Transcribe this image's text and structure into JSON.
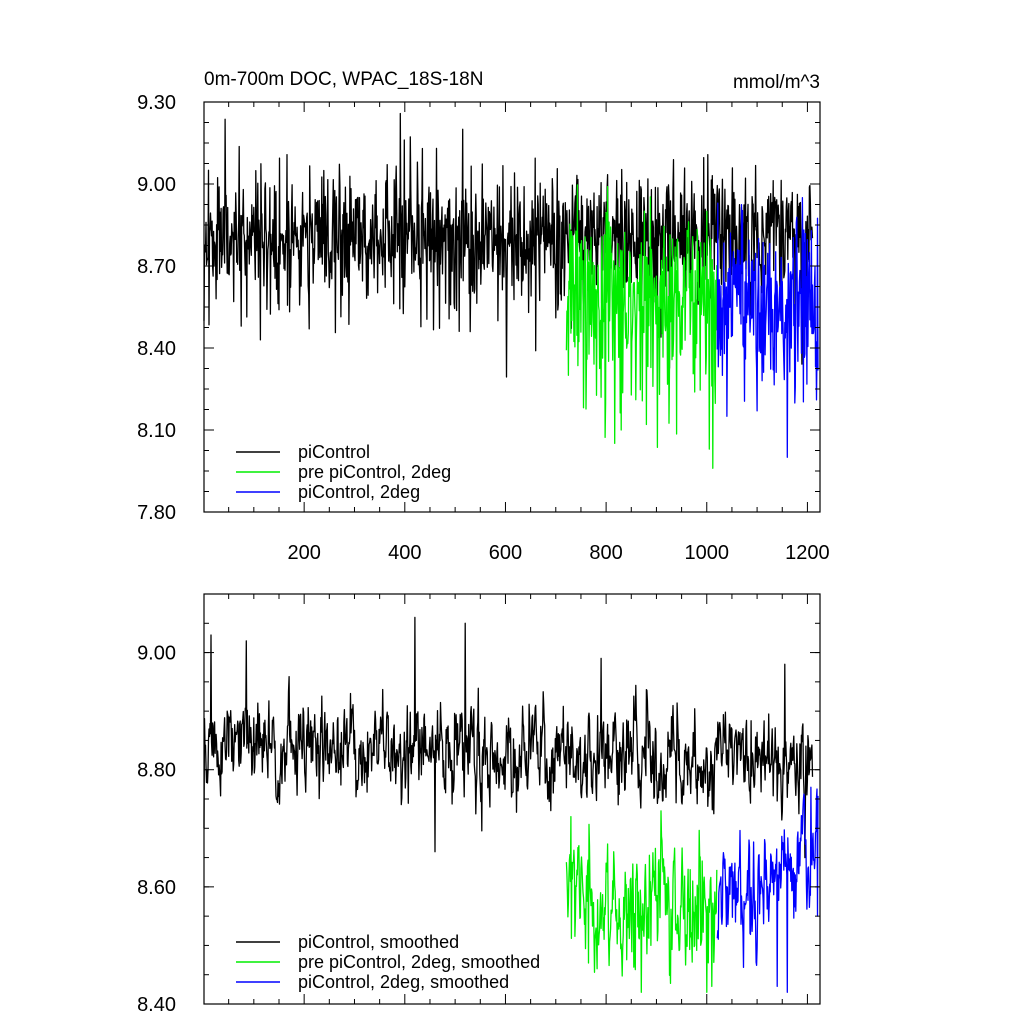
{
  "chart_data": [
    {
      "type": "line",
      "title": "0m-700m DOC, WPAC_18S-18N",
      "units": "mmol/m^3",
      "xlim": [
        1,
        1225
      ],
      "ylim": [
        7.8,
        9.3
      ],
      "y_ticks": [
        "7.80",
        "8.10",
        "8.40",
        "8.70",
        "9.00",
        "9.30"
      ],
      "x_ticks": [
        "200",
        "400",
        "600",
        "800",
        "1000",
        "1200"
      ],
      "legend_position": "bottom-left",
      "series": [
        {
          "name": "piControl",
          "color": "#000000",
          "x_range": [
            1,
            1210
          ],
          "mean": 8.81,
          "noise": 0.12,
          "trend": 0.0,
          "low_spikes": 0.3,
          "seed": 11,
          "points": [
            [
              1,
              8.5
            ],
            [
              10,
              9.05
            ],
            [
              25,
              8.58
            ],
            [
              75,
              8.48
            ],
            [
              150,
              8.54
            ],
            [
              210,
              8.47
            ],
            [
              310,
              8.95
            ],
            [
              425,
              9.08
            ],
            [
              435,
              9.13
            ],
            [
              515,
              9.2
            ],
            [
              530,
              8.46
            ],
            [
              585,
              8.5
            ],
            [
              660,
              8.39
            ]
          ]
        },
        {
          "name": "pre piControl, 2deg",
          "color": "#00ee00",
          "x_range": [
            721,
            1020
          ],
          "mean": 8.58,
          "noise": 0.17,
          "trend": 0.0,
          "low_spikes": 0.45,
          "seed": 23,
          "points": [
            [
              725,
              8.3
            ],
            [
              790,
              8.22
            ],
            [
              830,
              8.1
            ],
            [
              880,
              8.12
            ],
            [
              1005,
              8.03
            ],
            [
              1012,
              7.96
            ],
            [
              1000,
              8.9
            ]
          ]
        },
        {
          "name": "piControl, 2deg",
          "color": "#0000ff",
          "x_range": [
            1021,
            1221
          ],
          "mean": 8.56,
          "noise": 0.15,
          "trend": 0.0,
          "low_spikes": 0.35,
          "seed": 37,
          "points": [
            [
              1040,
              8.15
            ],
            [
              1100,
              8.17
            ],
            [
              1160,
              8.0
            ],
            [
              1190,
              8.95
            ],
            [
              1218,
              8.21
            ]
          ]
        }
      ]
    },
    {
      "type": "line",
      "xlim": [
        1,
        1225
      ],
      "ylim": [
        8.4,
        9.1
      ],
      "y_ticks": [
        "8.40",
        "8.60",
        "8.80",
        "9.00"
      ],
      "legend_position": "bottom-left",
      "series": [
        {
          "name": "piControl, smoothed",
          "color": "#000000",
          "x_range": [
            1,
            1210
          ],
          "mean": 8.84,
          "noise": 0.055,
          "trend": -2e-05,
          "smooth": true,
          "seed": 51,
          "points": [
            [
              1,
              8.7
            ],
            [
              15,
              9.03
            ],
            [
              85,
              9.02
            ],
            [
              420,
              9.06
            ],
            [
              460,
              8.66
            ],
            [
              520,
              9.05
            ],
            [
              790,
              8.99
            ],
            [
              1155,
              8.98
            ],
            [
              1195,
              8.65
            ]
          ]
        },
        {
          "name": "pre piControl, 2deg, smoothed",
          "color": "#00ee00",
          "x_range": [
            721,
            1020
          ],
          "mean": 8.57,
          "noise": 0.07,
          "trend": 0.0,
          "smooth": true,
          "seed": 63,
          "points": [
            [
              730,
              8.72
            ],
            [
              765,
              8.47
            ],
            [
              870,
              8.42
            ],
            [
              1000,
              8.42
            ],
            [
              1010,
              8.43
            ]
          ]
        },
        {
          "name": "piControl, 2deg, smoothed",
          "color": "#0000ff",
          "x_range": [
            1021,
            1221
          ],
          "mean": 8.57,
          "noise": 0.06,
          "trend": 0.0005,
          "smooth": true,
          "seed": 79,
          "points": [
            [
              1025,
              8.6
            ],
            [
              1140,
              8.43
            ],
            [
              1160,
              8.42
            ],
            [
              1207,
              8.77
            ],
            [
              1220,
              8.55
            ]
          ]
        }
      ]
    }
  ]
}
